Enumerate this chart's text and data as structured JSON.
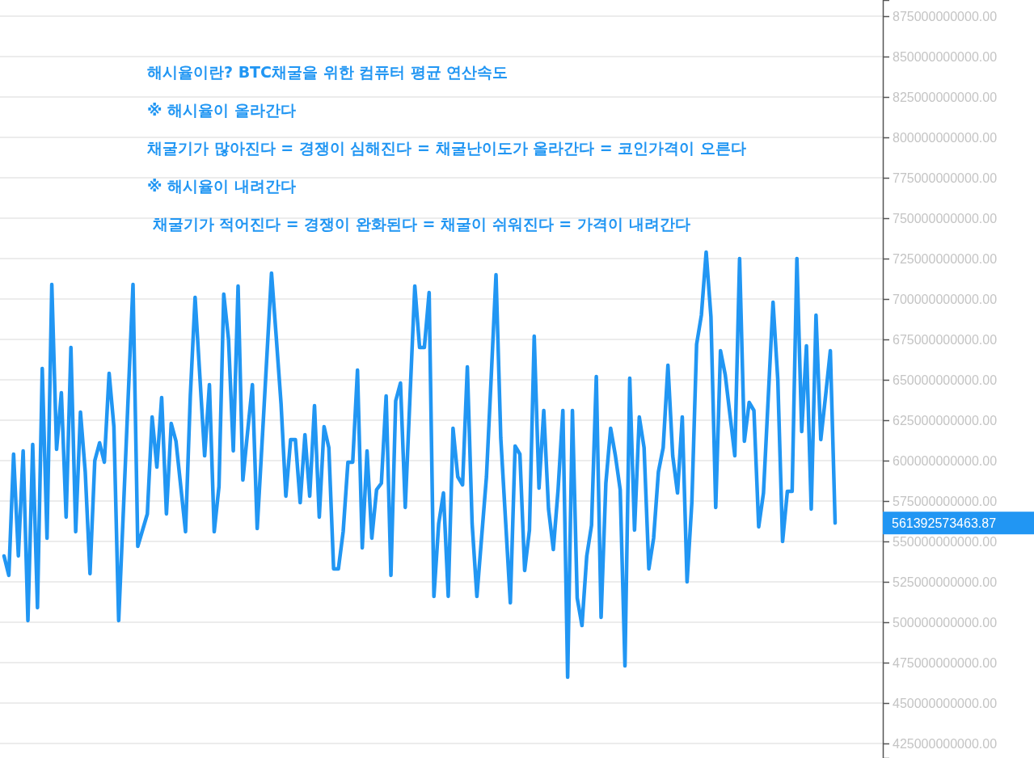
{
  "chart_data": {
    "type": "line",
    "categories": [
      null,
      null,
      null,
      null,
      null,
      null,
      null,
      null,
      null,
      null,
      null,
      null,
      null,
      null,
      null,
      null,
      null,
      null,
      null,
      null,
      null,
      null,
      null,
      null,
      null,
      null,
      null,
      null,
      null,
      null,
      null,
      null,
      null,
      null,
      null,
      null,
      null,
      null,
      null,
      null,
      null,
      null,
      null,
      null,
      null,
      null,
      null,
      null,
      null,
      null,
      null,
      null,
      null,
      null,
      null,
      null,
      null,
      null,
      null,
      null,
      null,
      null,
      null,
      null,
      null,
      null,
      null,
      null,
      null,
      null,
      null,
      null,
      null,
      null,
      null,
      null,
      null,
      null,
      null,
      null,
      null,
      null,
      null,
      null,
      null,
      null,
      null,
      null,
      null,
      null,
      null,
      null,
      null,
      null,
      null,
      null,
      null,
      null,
      null,
      null,
      null,
      null,
      null,
      null,
      null,
      null,
      null,
      null,
      null,
      null,
      null,
      null,
      null,
      null,
      null,
      null,
      null,
      null,
      null,
      null,
      null,
      null,
      null,
      null,
      null,
      null,
      null,
      null,
      null,
      null,
      null,
      null,
      null,
      null,
      null,
      null,
      null,
      null,
      null,
      null,
      null,
      null,
      null,
      null,
      null,
      null,
      null,
      null,
      null,
      null,
      null,
      null,
      null,
      null,
      null,
      null,
      null,
      null,
      null,
      null,
      null,
      null,
      null,
      null,
      null,
      null,
      null,
      null,
      null,
      null,
      null,
      null,
      null,
      null,
      null
    ],
    "series": [
      {
        "color": "#2196f3",
        "values": [
          541000000000,
          529000000000,
          604000000000,
          541000000000,
          606000000000,
          501000000000,
          610000000000,
          509000000000,
          657000000000,
          552000000000,
          709000000000,
          607000000000,
          642000000000,
          565000000000,
          670000000000,
          556000000000,
          630000000000,
          593000000000,
          530000000000,
          600000000000,
          611000000000,
          599000000000,
          654000000000,
          621000000000,
          501000000000,
          570000000000,
          640000000000,
          709000000000,
          547000000000,
          557000000000,
          567000000000,
          627000000000,
          596000000000,
          639000000000,
          567000000000,
          623000000000,
          612000000000,
          584000000000,
          556000000000,
          640000000000,
          701000000000,
          652000000000,
          603000000000,
          647000000000,
          556000000000,
          584000000000,
          703000000000,
          675000000000,
          606000000000,
          708000000000,
          588000000000,
          618000000000,
          647000000000,
          558000000000,
          610000000000,
          663000000000,
          716000000000,
          676000000000,
          635000000000,
          578000000000,
          613000000000,
          613000000000,
          574000000000,
          616000000000,
          578000000000,
          634000000000,
          565000000000,
          621000000000,
          608000000000,
          533000000000,
          533000000000,
          556000000000,
          599000000000,
          599000000000,
          656000000000,
          546000000000,
          606000000000,
          552000000000,
          582000000000,
          586000000000,
          640000000000,
          529000000000,
          637000000000,
          648000000000,
          571000000000,
          640000000000,
          708000000000,
          670000000000,
          670000000000,
          704000000000,
          516000000000,
          561000000000,
          580000000000,
          516000000000,
          620000000000,
          590000000000,
          585000000000,
          658000000000,
          561000000000,
          516000000000,
          553000000000,
          590000000000,
          652000000000,
          715000000000,
          614000000000,
          563000000000,
          512000000000,
          609000000000,
          604000000000,
          532000000000,
          557000000000,
          677000000000,
          583000000000,
          631000000000,
          570000000000,
          545000000000,
          582000000000,
          631000000000,
          466000000000,
          631000000000,
          515000000000,
          498000000000,
          541000000000,
          560000000000,
          652000000000,
          503000000000,
          586000000000,
          620000000000,
          603000000000,
          582000000000,
          473000000000,
          651000000000,
          557000000000,
          627000000000,
          608000000000,
          533000000000,
          552000000000,
          593000000000,
          608000000000,
          659000000000,
          603000000000,
          580000000000,
          627000000000,
          525000000000,
          574000000000,
          672000000000,
          690000000000,
          729000000000,
          689000000000,
          571000000000,
          668000000000,
          653000000000,
          628000000000,
          603000000000,
          725000000000,
          612000000000,
          636000000000,
          631000000000,
          559000000000,
          580000000000,
          639000000000,
          698000000000,
          650000000000,
          550000000000,
          581000000000,
          581000000000,
          725000000000,
          618000000000,
          671000000000,
          570000000000,
          690000000000,
          613000000000,
          640000000000,
          668000000000,
          561392573463.87
        ]
      }
    ],
    "ylim": [
      416000000000,
      885000000000
    ],
    "yticks": [
      {
        "value": 425000000000,
        "label": "425000000000.00"
      },
      {
        "value": 450000000000,
        "label": "450000000000.00"
      },
      {
        "value": 475000000000,
        "label": "475000000000.00"
      },
      {
        "value": 500000000000,
        "label": "500000000000.00"
      },
      {
        "value": 525000000000,
        "label": "525000000000.00"
      },
      {
        "value": 550000000000,
        "label": "550000000000.00"
      },
      {
        "value": 575000000000,
        "label": "575000000000.00"
      },
      {
        "value": 600000000000,
        "label": "600000000000.00"
      },
      {
        "value": 625000000000,
        "label": "625000000000.00"
      },
      {
        "value": 650000000000,
        "label": "650000000000.00"
      },
      {
        "value": 675000000000,
        "label": "675000000000.00"
      },
      {
        "value": 700000000000,
        "label": "700000000000.00"
      },
      {
        "value": 725000000000,
        "label": "725000000000.00"
      },
      {
        "value": 750000000000,
        "label": "750000000000.00"
      },
      {
        "value": 775000000000,
        "label": "775000000000.00"
      },
      {
        "value": 800000000000,
        "label": "800000000000.00"
      },
      {
        "value": 825000000000,
        "label": "825000000000.00"
      },
      {
        "value": 850000000000,
        "label": "850000000000.00"
      },
      {
        "value": 875000000000,
        "label": "875000000000.00"
      }
    ],
    "tick_labels": "y",
    "grid": "y",
    "line_style": "solid",
    "annotations": [
      "해시율이란? BTC채굴을 위한 컴퓨터 평균 연산속도",
      "※ 해시율이 올라간다",
      "채굴기가 많아진다 = 경쟁이 심해진다 = 채굴난이도가 올라간다 = 코인가격이 오른다",
      "※ 해시율이 내려간다",
      " 채굴기가 적어진다 = 경쟁이 완화된다 = 채굴이 쉬워진다 = 가격이 내려간다",
      "561392573463.87"
    ]
  }
}
